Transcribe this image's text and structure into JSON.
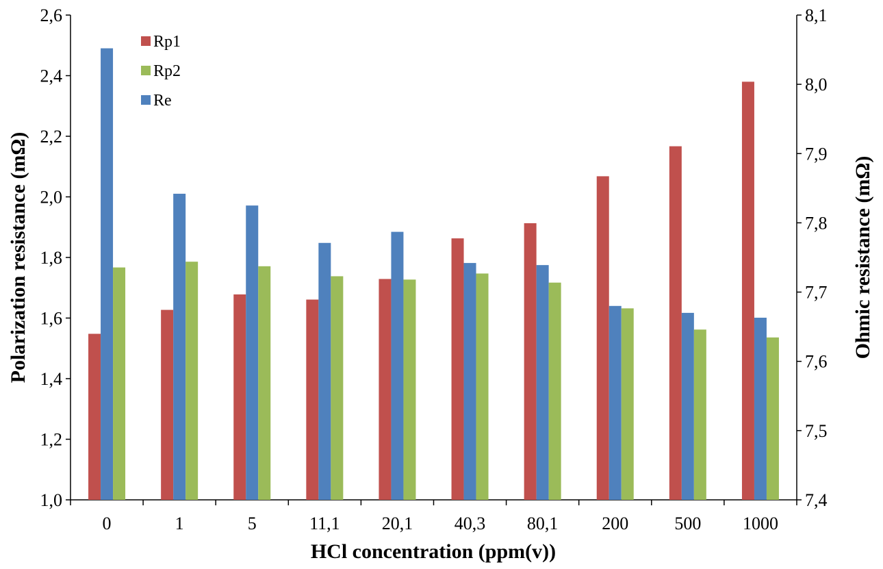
{
  "chart_data": {
    "type": "bar",
    "title": "",
    "xlabel": "HCl concentration (ppm(v))",
    "ylabel": "Polarization resistance (mΩ)",
    "y2label": "Ohmic resistance (mΩ)",
    "categories": [
      "0",
      "1",
      "5",
      "11,1",
      "20,1",
      "40,3",
      "80,1",
      "200",
      "500",
      "1000"
    ],
    "ylim": [
      1.0,
      2.6
    ],
    "y2lim": [
      7.4,
      8.1
    ],
    "yticks": [
      "1,0",
      "1,2",
      "1,4",
      "1,6",
      "1,8",
      "2,0",
      "2,2",
      "2,4",
      "2,6"
    ],
    "y2ticks": [
      "7,4",
      "7,5",
      "7,6",
      "7,7",
      "7,8",
      "7,9",
      "8,0",
      "8,1"
    ],
    "grid": false,
    "legend_position": "top-left",
    "series": [
      {
        "name": "Rp1",
        "axis": "left",
        "color": "#c0504d",
        "values": [
          1.548,
          1.627,
          1.678,
          1.661,
          1.729,
          1.863,
          1.913,
          2.068,
          2.167,
          2.38
        ]
      },
      {
        "name": "Re",
        "axis": "right",
        "color": "#4f81bd",
        "values": [
          8.052,
          7.842,
          7.825,
          7.771,
          7.787,
          7.742,
          7.739,
          7.68,
          7.67,
          7.663
        ]
      },
      {
        "name": "Rp2",
        "axis": "left",
        "color": "#9bbb59",
        "values": [
          1.767,
          1.786,
          1.771,
          1.738,
          1.727,
          1.747,
          1.717,
          1.632,
          1.562,
          1.536
        ]
      }
    ],
    "legend_order": [
      "Rp1",
      "Rp2",
      "Re"
    ]
  }
}
